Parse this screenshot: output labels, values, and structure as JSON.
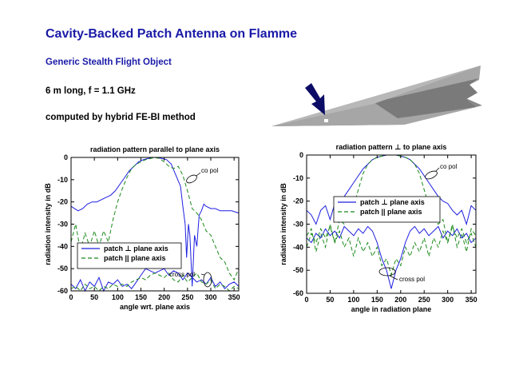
{
  "slide": {
    "title": "Cavity-Backed Patch Antenna on Flamme",
    "subtitle": "Generic Stealth Flight Object",
    "line1": "6 m long, f = 1.1 GHz",
    "line2": "computed by hybrid FE-BI method"
  },
  "figure": {
    "icon": "plane-rendering-with-arrow"
  },
  "colors": {
    "blue": "#1f1fe0",
    "green": "#1a8a1a",
    "title": "#1a1aa8"
  },
  "chart_data": [
    {
      "type": "line",
      "title": "radiation pattern parallel to plane axis",
      "xlabel": "angle wrt. plane axis",
      "ylabel": "radiation intensity in dB",
      "xlim": [
        0,
        360
      ],
      "ylim": [
        -60,
        0
      ],
      "xticks": [
        0,
        50,
        100,
        150,
        200,
        250,
        300,
        350
      ],
      "yticks": [
        0,
        -10,
        -20,
        -30,
        -40,
        -50,
        -60
      ],
      "legend_position": "lower-left",
      "annotations": [
        "co pol",
        "cross pol"
      ],
      "series": [
        {
          "name": "patch ⊥ plane axis",
          "style": "solid",
          "color": "#1f1fe0",
          "x": [
            0,
            15,
            25,
            35,
            45,
            55,
            65,
            75,
            85,
            95,
            105,
            115,
            125,
            135,
            145,
            155,
            165,
            175,
            185,
            195,
            205,
            215,
            225,
            235,
            240,
            245,
            248,
            252,
            255,
            260,
            265,
            270,
            275,
            280,
            285,
            290,
            300,
            310,
            320,
            330,
            345,
            360
          ],
          "y": [
            -22,
            -24,
            -23,
            -21,
            -20,
            -20,
            -19,
            -18,
            -17,
            -15,
            -12,
            -9,
            -6,
            -4,
            -2,
            -1,
            -0.5,
            0,
            0,
            -0.5,
            -1,
            -3,
            -8,
            -13,
            -22,
            -30,
            -45,
            -30,
            -35,
            -58,
            -35,
            -40,
            -26,
            -24,
            -21,
            -22,
            -23,
            -23,
            -24,
            -24,
            -24,
            -25
          ]
        },
        {
          "name": "patch || plane axis",
          "style": "dashed",
          "color": "#1a8a1a",
          "x": [
            0,
            10,
            20,
            30,
            40,
            50,
            60,
            70,
            80,
            90,
            100,
            110,
            120,
            130,
            140,
            150,
            160,
            170,
            180,
            190,
            200,
            210,
            220,
            230,
            240,
            250,
            260,
            270,
            280,
            290,
            300,
            310,
            320,
            330,
            340,
            350,
            360
          ],
          "y": [
            -38,
            -30,
            -42,
            -34,
            -40,
            -33,
            -40,
            -33,
            -38,
            -28,
            -20,
            -14,
            -9,
            -5,
            -3,
            -2,
            -1,
            -0.5,
            0,
            -0.5,
            -2,
            -4,
            -5,
            -4,
            -8,
            -15,
            -23,
            -25,
            -28,
            -33,
            -35,
            -40,
            -45,
            -47,
            -52,
            -55,
            -50
          ]
        },
        {
          "name": "cross pol ⊥",
          "style": "solid",
          "color": "#1f1fe0",
          "legend": false,
          "x": [
            0,
            10,
            20,
            30,
            40,
            50,
            60,
            70,
            80,
            90,
            100,
            110,
            120,
            130,
            140,
            150,
            160,
            170,
            180,
            190,
            200,
            210,
            220,
            230,
            240,
            250,
            260,
            270,
            280,
            290,
            300,
            310,
            320,
            330,
            340,
            350,
            360
          ],
          "y": [
            -57,
            -59,
            -55,
            -60,
            -56,
            -58,
            -54,
            -60,
            -56,
            -57,
            -55,
            -58,
            -57,
            -59,
            -56,
            -53,
            -50,
            -51,
            -52,
            -51,
            -50,
            -53,
            -51,
            -52,
            -55,
            -52,
            -54,
            -56,
            -55,
            -57,
            -54,
            -58,
            -56,
            -59,
            -57,
            -56,
            -58
          ]
        },
        {
          "name": "cross pol ||",
          "style": "dashed",
          "color": "#1a8a1a",
          "legend": false,
          "x": [
            0,
            10,
            20,
            30,
            40,
            50,
            60,
            70,
            80,
            90,
            100,
            110,
            120,
            130,
            140,
            150,
            160,
            170,
            180,
            190,
            200,
            210,
            220,
            230,
            240,
            250,
            260,
            270,
            280,
            290,
            300,
            310,
            320,
            330,
            340,
            350,
            360
          ],
          "y": [
            -59,
            -58,
            -60,
            -57,
            -59,
            -58,
            -60,
            -58,
            -59,
            -57,
            -58,
            -57,
            -58,
            -56,
            -55,
            -54,
            -55,
            -53,
            -52,
            -53,
            -54,
            -52,
            -55,
            -56,
            -53,
            -56,
            -54,
            -52,
            -56,
            -57,
            -55,
            -59,
            -57,
            -58,
            -60,
            -58,
            -59
          ]
        }
      ]
    },
    {
      "type": "line",
      "title": "radiation pattern ⊥ to plane axis",
      "xlabel": "angle in radiation plane",
      "ylabel": "radiation intensity in dB",
      "xlim": [
        0,
        360
      ],
      "ylim": [
        -60,
        0
      ],
      "xticks": [
        0,
        50,
        100,
        150,
        200,
        250,
        300,
        350
      ],
      "yticks": [
        0,
        -10,
        -20,
        -30,
        -40,
        -50,
        -60
      ],
      "legend_position": "center-right",
      "annotations": [
        "co pol",
        "cross pol"
      ],
      "series": [
        {
          "name": "patch ⊥ plane axis",
          "style": "solid",
          "color": "#1f1fe0",
          "x": [
            0,
            10,
            20,
            30,
            40,
            50,
            60,
            70,
            80,
            90,
            100,
            110,
            120,
            130,
            140,
            150,
            160,
            170,
            180,
            190,
            200,
            210,
            220,
            230,
            240,
            250,
            260,
            270,
            280,
            290,
            300,
            310,
            320,
            330,
            340,
            350,
            360
          ],
          "y": [
            -24,
            -26,
            -30,
            -24,
            -22,
            -28,
            -21,
            -20,
            -18,
            -15,
            -12,
            -9,
            -6,
            -4,
            -2,
            -1,
            -0.5,
            0,
            0,
            0,
            -0.5,
            -1,
            -2,
            -4,
            -6,
            -9,
            -12,
            -15,
            -18,
            -20,
            -21,
            -24,
            -26,
            -24,
            -30,
            -22,
            -24
          ]
        },
        {
          "name": "patch || plane axis",
          "style": "dashed",
          "color": "#1a8a1a",
          "x": [
            0,
            10,
            20,
            30,
            40,
            50,
            60,
            70,
            80,
            90,
            100,
            110,
            120,
            130,
            140,
            150,
            160,
            170,
            180,
            190,
            200,
            210,
            220,
            230,
            240,
            250,
            260,
            270,
            280,
            290,
            300,
            310,
            320,
            330,
            340,
            350,
            360
          ],
          "y": [
            -35,
            -32,
            -42,
            -34,
            -40,
            -30,
            -38,
            -28,
            -30,
            -28,
            -22,
            -15,
            -8,
            -4,
            -2,
            -1,
            -0.5,
            0,
            0,
            0,
            -0.5,
            -1,
            -2,
            -4,
            -8,
            -15,
            -22,
            -28,
            -30,
            -28,
            -38,
            -30,
            -40,
            -34,
            -42,
            -32,
            -35
          ]
        },
        {
          "name": "cross pol ⊥",
          "style": "solid",
          "color": "#1f1fe0",
          "legend": false,
          "x": [
            0,
            10,
            20,
            30,
            40,
            50,
            60,
            70,
            80,
            90,
            100,
            110,
            120,
            130,
            140,
            150,
            160,
            170,
            180,
            190,
            200,
            210,
            220,
            230,
            240,
            250,
            260,
            270,
            280,
            290,
            300,
            310,
            320,
            330,
            340,
            350,
            360
          ],
          "y": [
            -36,
            -38,
            -34,
            -36,
            -32,
            -35,
            -33,
            -36,
            -31,
            -33,
            -35,
            -32,
            -34,
            -31,
            -33,
            -38,
            -45,
            -50,
            -58,
            -50,
            -45,
            -38,
            -33,
            -31,
            -34,
            -32,
            -35,
            -33,
            -31,
            -36,
            -33,
            -35,
            -32,
            -36,
            -34,
            -38,
            -36
          ]
        },
        {
          "name": "cross pol ||",
          "style": "dashed",
          "color": "#1a8a1a",
          "legend": false,
          "x": [
            0,
            10,
            20,
            30,
            40,
            50,
            60,
            70,
            80,
            90,
            100,
            110,
            120,
            130,
            140,
            150,
            160,
            170,
            180,
            190,
            200,
            210,
            220,
            230,
            240,
            250,
            260,
            270,
            280,
            290,
            300,
            310,
            320,
            330,
            340,
            350,
            360
          ],
          "y": [
            -40,
            -34,
            -38,
            -32,
            -36,
            -31,
            -38,
            -33,
            -40,
            -36,
            -44,
            -36,
            -42,
            -38,
            -44,
            -40,
            -48,
            -45,
            -52,
            -45,
            -48,
            -40,
            -44,
            -38,
            -42,
            -36,
            -44,
            -36,
            -40,
            -33,
            -38,
            -31,
            -36,
            -32,
            -38,
            -34,
            -40
          ]
        }
      ]
    }
  ]
}
